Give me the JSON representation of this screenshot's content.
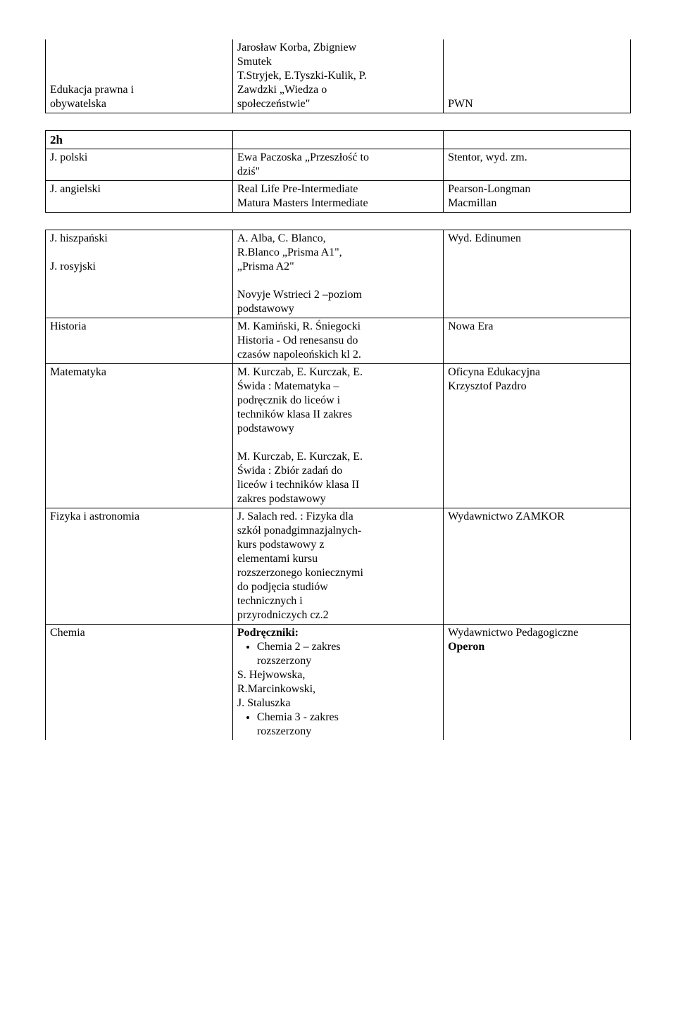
{
  "table1": {
    "row1": {
      "subject": "Edukacja prawna i\nobywatelska",
      "book": "Jarosław Korba, Zbigniew\nSmutek\nT.Stryjek, E.Tyszki-Kulik, P.\nZawdzki „Wiedza o\nspołeczeństwie\"",
      "publisher": "PWN"
    }
  },
  "table2": {
    "head": "2h",
    "row1": {
      "subject": "J. polski",
      "book": "Ewa Paczoska „Przeszłość to\ndziś\"",
      "publisher": "Stentor, wyd. zm."
    },
    "row2": {
      "subject": "J. angielski",
      "book": "Real Life Pre-Intermediate\nMatura Masters Intermediate",
      "publisher": "Pearson-Longman\nMacmillan"
    }
  },
  "table3": {
    "row1": {
      "subject": "J. hiszpański\n\nJ. rosyjski",
      "book": "A. Alba, C. Blanco,\nR.Blanco „Prisma A1\",\n„Prisma A2\"\n\nNovyje Wstrieci 2 –poziom\npodstawowy",
      "publisher": "Wyd. Edinumen"
    },
    "row2": {
      "subject": "Historia",
      "book": "M. Kamiński, R. Śniegocki\nHistoria - Od renesansu do\nczasów napoleońskich kl 2.",
      "publisher": "Nowa Era"
    },
    "row3": {
      "subject": "Matematyka",
      "book_part1": "M. Kurczab, E. Kurczak, E.\nŚwida : Matematyka –\npodręcznik do liceów i\ntechników klasa II zakres\npodstawowy",
      "book_part2": "M. Kurczab, E. Kurczak, E.\nŚwida : Zbiór zadań do\nliceów i techników klasa II\nzakres podstawowy",
      "publisher": "Oficyna Edukacyjna\nKrzysztof Pazdro"
    },
    "row4": {
      "subject": "Fizyka i astronomia",
      "book": "J. Salach red. : Fizyka dla\nszkół ponadgimnazjalnych-\nkurs podstawowy z\nelementami kursu\nrozszerzonego koniecznymi\ndo podjęcia studiów\ntechnicznych i\nprzyrodniczych cz.2",
      "publisher": "Wydawnictwo ZAMKOR"
    },
    "row5": {
      "subject": "Chemia",
      "book_heading": "Podręczniki:",
      "bullet1": "Chemia 2 – zakres\nrozszerzony",
      "authors": "S. Hejwowska,\nR.Marcinkowski,\nJ. Staluszka",
      "bullet2": "Chemia 3 - zakres\nrozszerzony",
      "publisher_line1": "Wydawnictwo Pedagogiczne",
      "publisher_line2": "Operon"
    }
  }
}
